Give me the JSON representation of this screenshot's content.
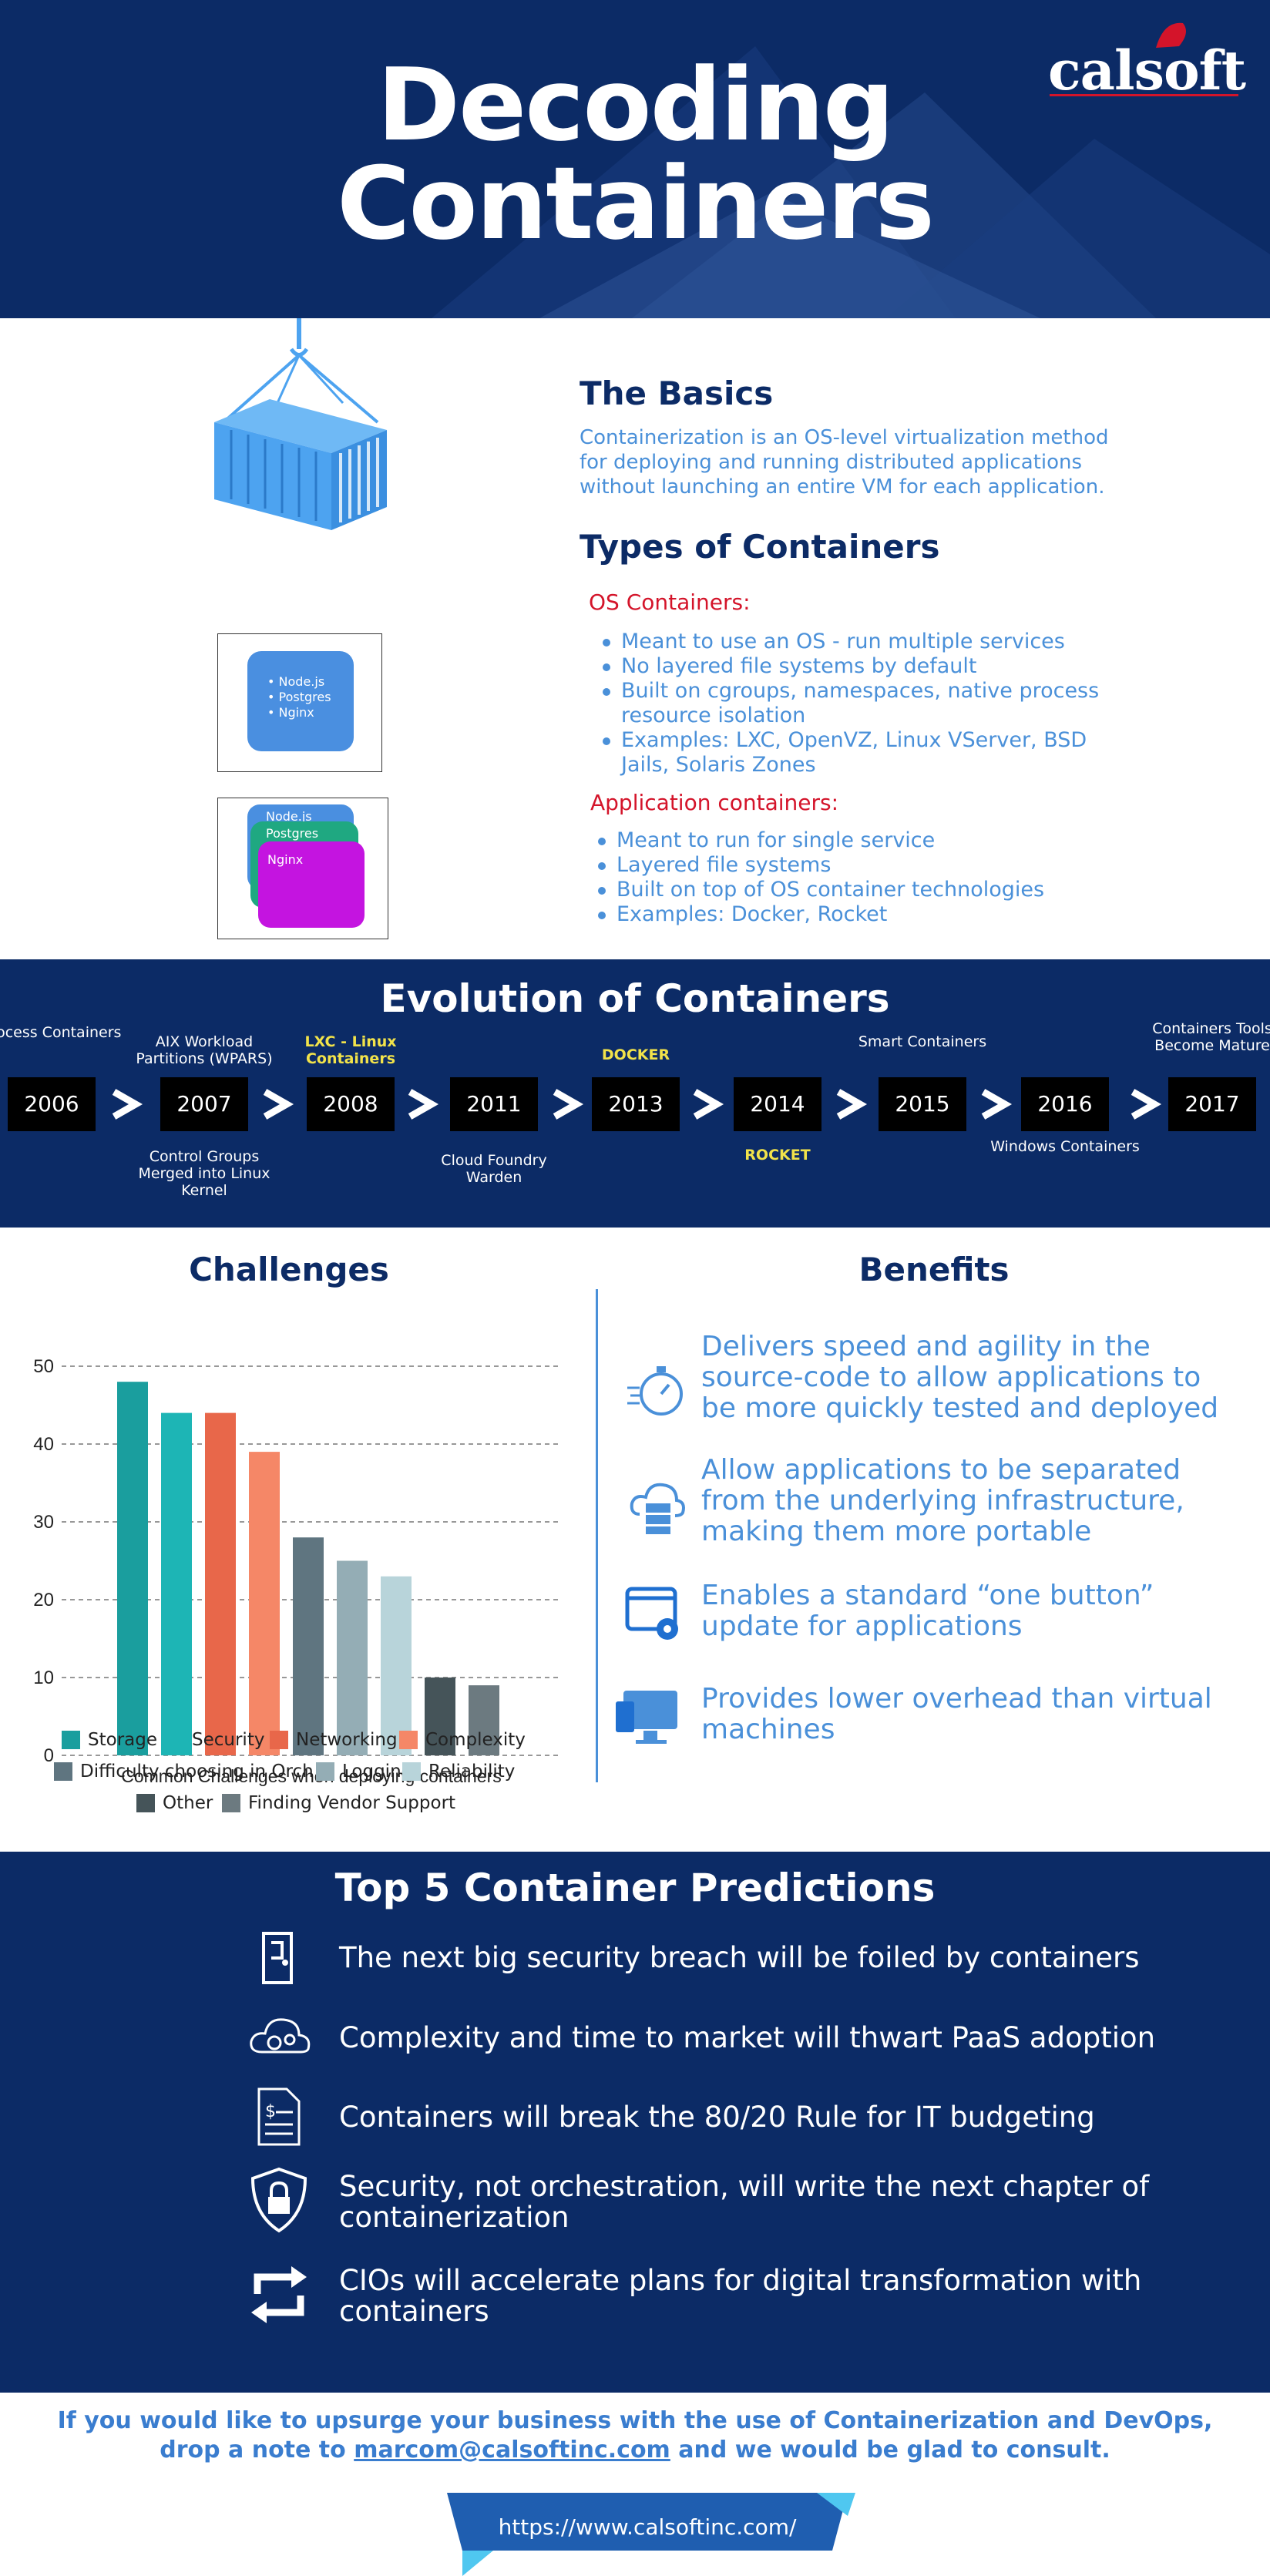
{
  "header": {
    "title_line1": "Decoding",
    "title_line2": "Containers",
    "logo": "calsoft"
  },
  "basics": {
    "heading": "The Basics",
    "text_lines": [
      "Containerization is an OS-level virtualization method",
      "for deploying and running distributed applications",
      "without launching an entire VM for each application."
    ]
  },
  "types": {
    "heading": "Types of Containers",
    "os_label": "OS Containers:",
    "os_items": [
      "Meant to use an OS - run multiple services",
      "No layered file systems by default",
      "Built on cgroups, namespaces, native process resource isolation",
      "Examples: LXC, OpenVZ, Linux VServer, BSD Jails, Solaris Zones"
    ],
    "app_label": "Application containers:",
    "app_items": [
      "Meant to run for single service",
      "Layered file systems",
      "Built on top of OS container technologies",
      "Examples: Docker, Rocket"
    ],
    "os_box_items": [
      "Node.js",
      "Postgres",
      "Nginx"
    ],
    "app_box_items": [
      "Node.js",
      "Postgres",
      "Nginx"
    ]
  },
  "evolution": {
    "heading": "Evolution of Containers",
    "years": [
      "2006",
      "2007",
      "2008",
      "2011",
      "2013",
      "2014",
      "2015",
      "2016",
      "2017"
    ],
    "labels_above": [
      "Process Containers",
      "AIX Workload Partitions (WPARS)",
      "LXC - Linux Containers",
      "DOCKER",
      "Smart Containers",
      "Containers Tools Become Mature"
    ],
    "labels_below": [
      "Control Groups Merged into Linux Kernel",
      "Cloud Foundry Warden",
      "ROCKET",
      "Windows Containers"
    ]
  },
  "challenges": {
    "heading": "Challenges",
    "chart_data": {
      "type": "bar",
      "categories": [
        "Storage",
        "Security",
        "Networking",
        "Complexity",
        "Difficulty choosing in Orch..",
        "Logging",
        "Reliability",
        "Other",
        "Finding Vendor Support"
      ],
      "values": [
        48,
        44,
        44,
        39,
        28,
        25,
        23,
        10,
        9
      ],
      "colors": [
        "#1a9e9e",
        "#1db5b5",
        "#e8674a",
        "#f58767",
        "#5f7580",
        "#94adb5",
        "#b8d4da",
        "#455459",
        "#6c7a80"
      ],
      "xlabel": "Common Challenges when deploying containers",
      "ylim": [
        0,
        50
      ],
      "yticks": [
        "0",
        "10",
        "20",
        "30",
        "40",
        "50"
      ],
      "grid": true,
      "legend": "bottom"
    }
  },
  "benefits": {
    "heading": "Benefits",
    "items": [
      {
        "icon": "stopwatch-icon",
        "text": "Delivers speed and agility in the source-code to allow applications to be more quickly tested and deployed"
      },
      {
        "icon": "cloud-server-icon",
        "text": "Allow applications to be separated from the underlying infrastructure, making them more portable"
      },
      {
        "icon": "browser-gear-icon",
        "text": "Enables a standard “one button” update for applications"
      },
      {
        "icon": "monitor-icon",
        "text": "Provides lower overhead than virtual machines"
      }
    ]
  },
  "predictions": {
    "heading": "Top 5 Container Predictions",
    "items": [
      {
        "icon": "door-icon",
        "text": "The next big security breach will be foiled by containers"
      },
      {
        "icon": "cloud-gears-icon",
        "text": "Complexity and time to market will thwart PaaS adoption"
      },
      {
        "icon": "invoice-icon",
        "text": "Containers will break the 80/20 Rule for IT budgeting"
      },
      {
        "icon": "shield-lock-icon",
        "text": "Security, not orchestration, will write the next chapter of containerization"
      },
      {
        "icon": "refresh-arrows-icon",
        "text": "CIOs will accelerate plans for digital transformation with containers"
      }
    ]
  },
  "footer": {
    "cta_prefix": "If you would like to upsurge your business with the use of Containerization and DevOps, drop a note to",
    "email": "marcom@calsoftinc.com",
    "cta_suffix": "and we would be glad to consult.",
    "url": "https://www.calsoftinc.com/"
  },
  "colors": {
    "navy": "#0c2b66",
    "accent_blue": "#4a90d9",
    "red": "#d4142a",
    "yellow": "#f2e34a"
  }
}
